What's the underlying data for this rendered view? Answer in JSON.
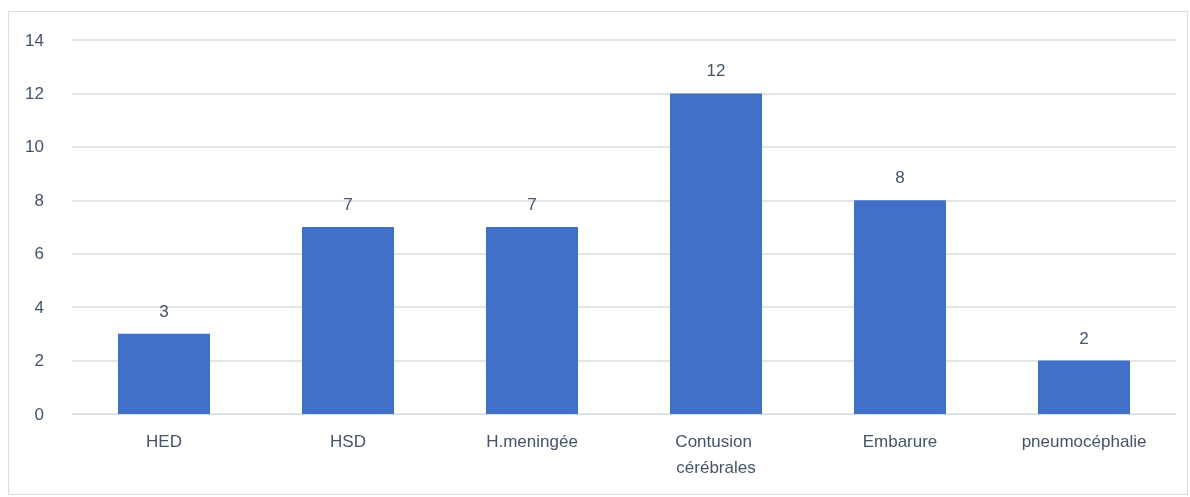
{
  "chart_data": {
    "type": "bar",
    "categories": [
      "HED",
      "HSD",
      "H.meningée",
      "Contusion cérébrales",
      "Embarure",
      "pneumocéphalie"
    ],
    "values": [
      3,
      7,
      7,
      12,
      8,
      2
    ],
    "color": "#4170c8",
    "ylim": [
      0,
      14
    ],
    "yticks": [
      0,
      2,
      4,
      6,
      8,
      10,
      12,
      14
    ],
    "grid": "y",
    "data_labels": true
  }
}
